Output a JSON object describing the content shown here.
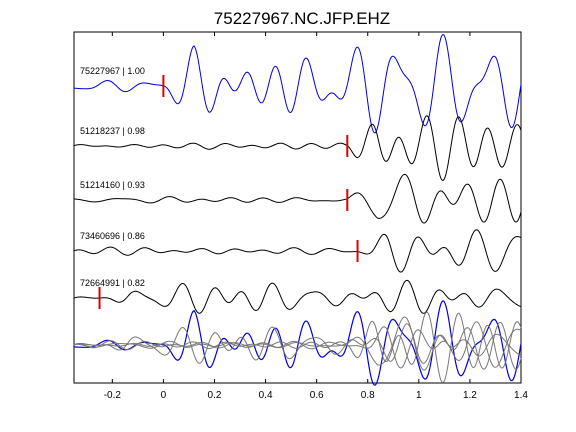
{
  "chart_data": {
    "type": "line",
    "title": "75227967.NC.JFP.EHZ",
    "xlabel": "",
    "ylabel": "",
    "xlim": [
      -0.35,
      1.4
    ],
    "x_ticks": [
      -0.2,
      0,
      0.2,
      0.4,
      0.6,
      0.8,
      1,
      1.2,
      1.4
    ],
    "x_tick_labels": [
      "-0.2",
      "0",
      "0.2",
      "0.4",
      "0.6",
      "0.8",
      "1",
      "1.2",
      "1.4"
    ],
    "grid": false,
    "legend": "none",
    "colors": {
      "reference": "#0000dd",
      "trace": "#000000",
      "overlay": "#777777",
      "pick": "#dd0000"
    },
    "series": [
      {
        "label": "75227967 | 1.00",
        "pick_time": 0.0,
        "color": "#0000dd"
      },
      {
        "label": "51218237 | 0.98",
        "pick_time": 0.72,
        "color": "#000000"
      },
      {
        "label": "51214160 | 0.93",
        "pick_time": 0.72,
        "color": "#000000"
      },
      {
        "label": "73460696 | 0.86",
        "pick_time": 0.76,
        "color": "#000000"
      },
      {
        "label": "72664991 | 0.82",
        "pick_time": -0.25,
        "color": "#000000"
      }
    ]
  }
}
